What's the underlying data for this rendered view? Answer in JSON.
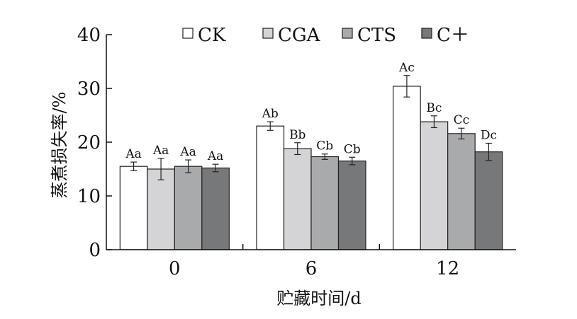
{
  "chart_data": {
    "type": "bar",
    "xlabel": "贮藏时间/d",
    "ylabel": "蒸煮损失率/%",
    "ylim": [
      0,
      40
    ],
    "yticks": [
      "0",
      "10",
      "20",
      "30",
      "40"
    ],
    "categories": [
      "0",
      "6",
      "12"
    ],
    "legend_position": "top",
    "error_bars": true,
    "series": [
      {
        "name": "CK",
        "color": "#ffffff",
        "values": [
          15.5,
          23.0,
          30.4
        ],
        "errors": [
          0.8,
          0.8,
          2.0
        ],
        "labels": [
          "Aa",
          "Ab",
          "Ac"
        ]
      },
      {
        "name": "CGA",
        "color": "#d4d4d6",
        "values": [
          15.0,
          18.8,
          23.8
        ],
        "errors": [
          2.0,
          1.1,
          1.1
        ],
        "labels": [
          "Aa",
          "Bb",
          "Bc"
        ]
      },
      {
        "name": "CTS",
        "color": "#a9aaac",
        "values": [
          15.5,
          17.3,
          21.6
        ],
        "errors": [
          1.2,
          0.5,
          1.0
        ],
        "labels": [
          "Aa",
          "Cb",
          "Cc"
        ]
      },
      {
        "name": "C＋",
        "color": "#77787a",
        "values": [
          15.2,
          16.5,
          18.2
        ],
        "errors": [
          0.7,
          0.7,
          1.6
        ],
        "labels": [
          "Aa",
          "Cb",
          "Dc"
        ]
      }
    ]
  }
}
